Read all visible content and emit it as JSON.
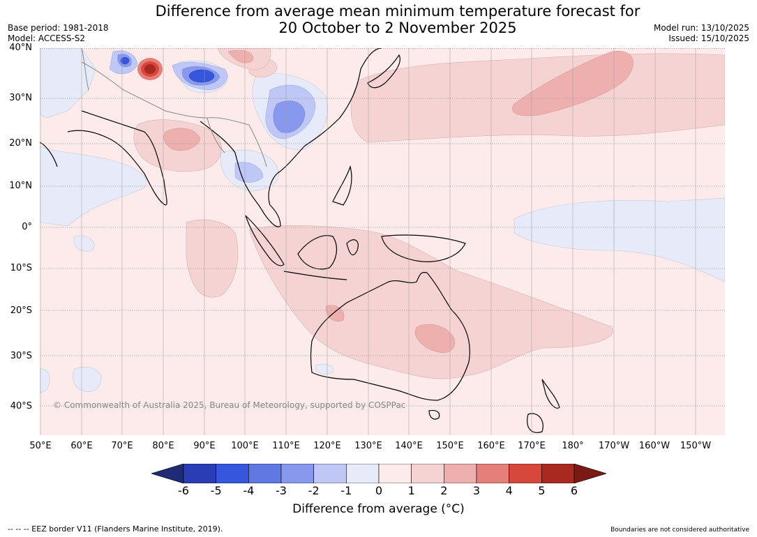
{
  "header": {
    "title_line1": "Difference from average mean minimum temperature forecast for",
    "title_line2": "20 October to 2 November 2025",
    "base_period": "Base period: 1981-2018",
    "model": "Model: ACCESS-S2",
    "model_run": "Model run: 13/10/2025",
    "issued": "Issued: 15/10/2025"
  },
  "map": {
    "lat_labels": [
      "40°N",
      "30°N",
      "20°N",
      "10°N",
      "0°",
      "10°S",
      "20°S",
      "30°S",
      "40°S"
    ],
    "lon_labels": [
      "50°E",
      "60°E",
      "70°E",
      "80°E",
      "90°E",
      "100°E",
      "110°E",
      "120°E",
      "130°E",
      "140°E",
      "150°E",
      "160°E",
      "170°E",
      "180°",
      "170°W",
      "160°W",
      "150°W"
    ],
    "copyright": "© Commonwealth of Australia 2025, Bureau of Meteorology, supported by COSPPac"
  },
  "colorbar": {
    "ticks": [
      "-6",
      "-5",
      "-4",
      "-3",
      "-2",
      "-1",
      "0",
      "1",
      "2",
      "3",
      "4",
      "5",
      "6"
    ],
    "colors": [
      "#1f2a78",
      "#2a3db5",
      "#3656de",
      "#5f78e2",
      "#8898ec",
      "#bec7f5",
      "#e6eaf9",
      "#fcebea",
      "#f5d3d3",
      "#eeb0ae",
      "#e57f79",
      "#d8473c",
      "#a9281f",
      "#7a1a14"
    ],
    "label": "Difference from average (°C)"
  },
  "footer": {
    "left": "--  --  -- EEZ border V11 (Flanders Marine Institute, 2019).",
    "right": "Boundaries are not considered authoritative"
  }
}
